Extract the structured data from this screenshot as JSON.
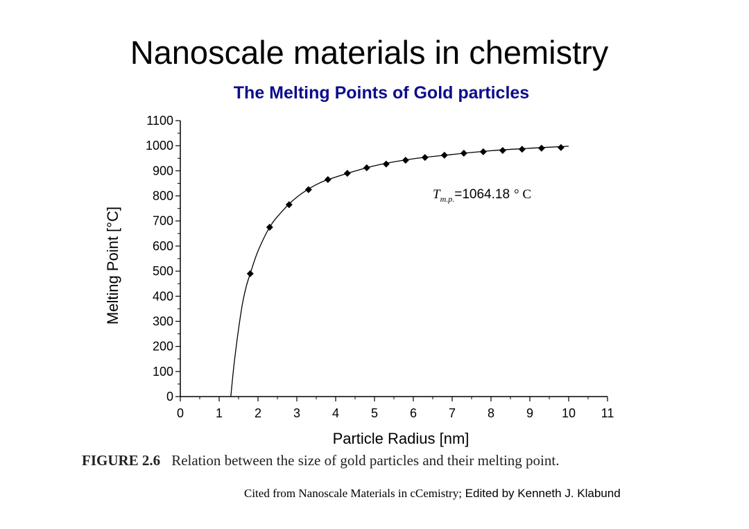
{
  "slide": {
    "title": "Nanoscale materials in chemistry",
    "caption_label": "FIGURE 2.6",
    "caption_text": "Relation between the size of gold particles and their melting point.",
    "citation_serif": "Cited from Nanoscale Materials in cCemistry;",
    "citation_sans": " Edited by Kenneth J. Klabund"
  },
  "chart_data": {
    "type": "scatter",
    "title": "The Melting Points of Gold particles",
    "xlabel": "Particle Radius [nm]",
    "ylabel": "Melting Point [°C]",
    "xlim": [
      0,
      11
    ],
    "ylim": [
      0,
      1100
    ],
    "xticks": [
      "0",
      "1",
      "2",
      "3",
      "4",
      "5",
      "6",
      "7",
      "8",
      "9",
      "10",
      "11"
    ],
    "yticks": [
      "0",
      "100",
      "200",
      "300",
      "400",
      "500",
      "600",
      "700",
      "800",
      "900",
      "1000",
      "1100"
    ],
    "annotation": {
      "symbol": "T",
      "subscript": "m.p.",
      "value": "=1064.18",
      "unit": "° C"
    },
    "series": [
      {
        "points": [
          [
            1.8,
            490
          ],
          [
            2.3,
            675
          ],
          [
            2.8,
            765
          ],
          [
            3.3,
            825
          ],
          [
            3.8,
            865
          ],
          [
            4.3,
            890
          ],
          [
            4.8,
            912
          ],
          [
            5.3,
            927
          ],
          [
            5.8,
            942
          ],
          [
            6.3,
            953
          ],
          [
            6.8,
            962
          ],
          [
            7.3,
            970
          ],
          [
            7.8,
            976
          ],
          [
            8.3,
            981
          ],
          [
            8.8,
            986
          ],
          [
            9.3,
            990
          ],
          [
            9.8,
            993
          ]
        ]
      }
    ],
    "fit_curve": {
      "x": [
        1.3,
        1.35,
        1.4,
        1.5,
        1.6,
        1.7,
        1.8,
        2.0,
        2.3,
        2.6,
        3.0,
        3.5,
        4.0,
        5.0,
        6.0,
        7.0,
        8.0,
        9.0,
        10.0
      ],
      "y": [
        0,
        80,
        150,
        270,
        370,
        440,
        490,
        580,
        675,
        735,
        795,
        845,
        875,
        920,
        948,
        965,
        980,
        990,
        998
      ]
    }
  }
}
